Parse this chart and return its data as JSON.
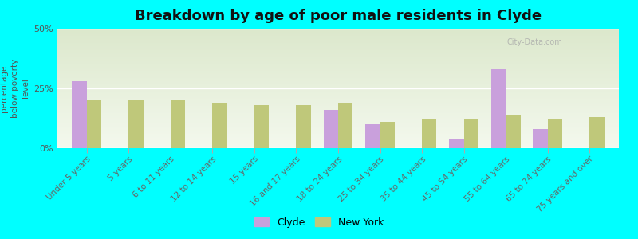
{
  "title": "Breakdown by age of poor male residents in Clyde",
  "ylabel": "percentage\nbelow poverty\nlevel",
  "categories": [
    "Under 5 years",
    "5 years",
    "6 to 11 years",
    "12 to 14 years",
    "15 years",
    "16 and 17 years",
    "18 to 24 years",
    "25 to 34 years",
    "35 to 44 years",
    "45 to 54 years",
    "55 to 64 years",
    "65 to 74 years",
    "75 years and over"
  ],
  "clyde_values": [
    28,
    0,
    0,
    0,
    0,
    0,
    16,
    10,
    0,
    4,
    33,
    8,
    0
  ],
  "newyork_values": [
    20,
    20,
    20,
    19,
    18,
    18,
    19,
    11,
    12,
    12,
    14,
    12,
    13
  ],
  "clyde_color": "#c9a0dc",
  "newyork_color": "#bfc87a",
  "background_color": "#00ffff",
  "plot_bg_top": "#dce8cc",
  "plot_bg_bottom": "#f4f9ee",
  "ylim": [
    0,
    50
  ],
  "yticks": [
    0,
    25,
    50
  ],
  "ytick_labels": [
    "0%",
    "25%",
    "50%"
  ],
  "title_fontsize": 13,
  "axis_fontsize": 7.5,
  "tick_fontsize": 8,
  "legend_labels": [
    "Clyde",
    "New York"
  ],
  "watermark": "City-Data.com"
}
